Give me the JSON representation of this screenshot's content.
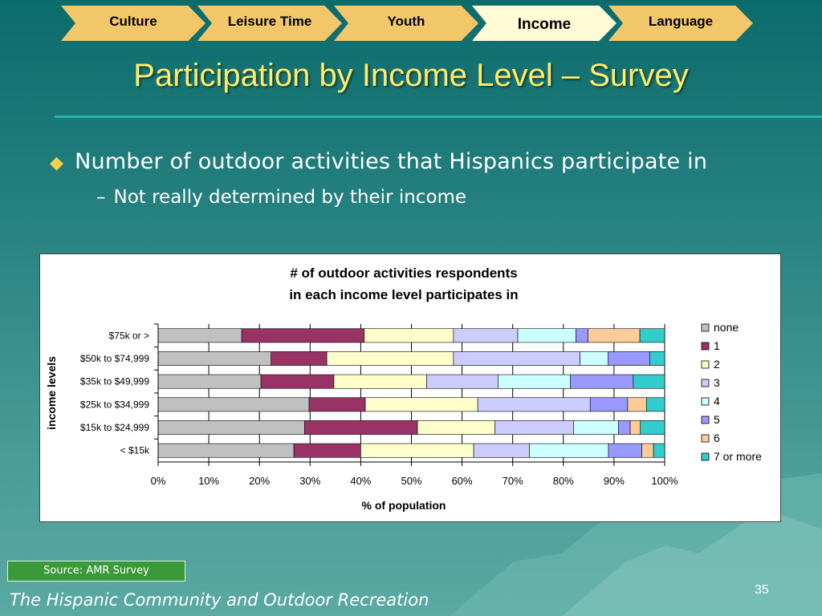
{
  "nav": {
    "tabs": [
      {
        "label": "Culture",
        "active": false
      },
      {
        "label": "Leisure Time",
        "active": false
      },
      {
        "label": "Youth",
        "active": false
      },
      {
        "label": "Income",
        "active": true
      },
      {
        "label": "Language",
        "active": false
      }
    ]
  },
  "slide": {
    "title": "Participation by Income Level – Survey",
    "bullet": "Number of outdoor activities that Hispanics participate in",
    "sub_bullet": "Not really determined by their income",
    "source": "Source: AMR Survey",
    "footer": "The Hispanic Community and Outdoor Recreation",
    "page_number": "35"
  },
  "colors": {
    "none": "#c0c0c0",
    "1": "#993366",
    "2": "#ffffcc",
    "3": "#ccccff",
    "4": "#ccffff",
    "5": "#9999ff",
    "6": "#ffcc99",
    "7 or more": "#33cccc"
  },
  "chart_data": {
    "type": "bar",
    "orientation": "horizontal",
    "stacked": "percent",
    "title": [
      "# of outdoor activities respondents",
      "in each income level participates in"
    ],
    "xlabel": "% of population",
    "ylabel": "income levels",
    "xlim": [
      0,
      100
    ],
    "xticks": [
      "0%",
      "10%",
      "20%",
      "30%",
      "40%",
      "50%",
      "60%",
      "70%",
      "80%",
      "90%",
      "100%"
    ],
    "legend_position": "right",
    "categories": [
      "$75k or >",
      "$50k to $74,999",
      "$35k to $49,999",
      "$25k to $34,999",
      "$15k to $24,999",
      "< $15k"
    ],
    "series": [
      {
        "name": "none",
        "values": [
          16.5,
          22.3,
          20.3,
          29.8,
          28.9,
          26.8
        ]
      },
      {
        "name": "1",
        "values": [
          24.2,
          11.0,
          14.4,
          11.1,
          22.3,
          13.2
        ]
      },
      {
        "name": "2",
        "values": [
          17.6,
          25.0,
          18.3,
          22.2,
          15.3,
          22.3
        ]
      },
      {
        "name": "3",
        "values": [
          12.7,
          25.0,
          14.1,
          22.2,
          15.5,
          11.0
        ]
      },
      {
        "name": "4",
        "values": [
          11.5,
          5.5,
          14.3,
          0,
          8.9,
          15.6
        ]
      },
      {
        "name": "5",
        "values": [
          2.4,
          8.3,
          12.4,
          7.4,
          2.3,
          6.6
        ]
      },
      {
        "name": "6",
        "values": [
          10.2,
          0,
          0,
          3.7,
          2.0,
          2.3
        ]
      },
      {
        "name": "7 or more",
        "values": [
          4.9,
          2.9,
          6.2,
          3.6,
          4.8,
          2.2
        ]
      }
    ]
  }
}
